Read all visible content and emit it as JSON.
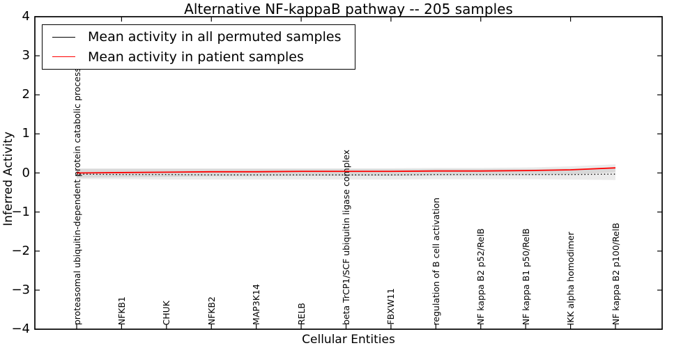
{
  "legend": {
    "entries": [
      {
        "label": "Mean activity in all permuted samples",
        "color": "#000000"
      },
      {
        "label": "Mean activity in patient samples",
        "color": "#ff0000"
      }
    ]
  },
  "chart_data": {
    "type": "line",
    "title": "Alternative NF-kappaB pathway -- 205 samples",
    "xlabel": "Cellular Entities",
    "ylabel": "Inferred Activity",
    "ylim": [
      -4,
      4
    ],
    "yticks": [
      4,
      3,
      2,
      1,
      0,
      -1,
      -2,
      -3,
      -4
    ],
    "ytick_labels": [
      "4",
      "3",
      "2",
      "1",
      "0",
      "−1",
      "−2",
      "−3",
      "−4"
    ],
    "grid": false,
    "legend_position": "upper left",
    "band_color": "rgba(0,0,0,0.08)",
    "frame_color": "#000000",
    "categories": [
      "proteasomal ubiquitin-dependent protein catabolic process",
      "NFKB1",
      "CHUK",
      "NFKB2",
      "MAP3K14",
      "RELB",
      "beta TrCP1/SCF ubiquitin ligase complex",
      "FBXW11",
      "regulation of B cell activation",
      "NF kappa B2 p52/RelB",
      "NF kappa B1 p50/RelB",
      "IKK alpha homodimer",
      "NF kappa B2 p100/RelB"
    ],
    "series": [
      {
        "name": "Mean activity in all permuted samples",
        "color": "#000000",
        "line_style": "dotted",
        "values": [
          -0.03,
          -0.04,
          -0.04,
          -0.05,
          -0.05,
          -0.05,
          -0.05,
          -0.05,
          -0.04,
          -0.04,
          -0.04,
          -0.04,
          -0.03
        ]
      },
      {
        "name": "Mean activity in patient samples",
        "color": "#ff0000",
        "line_style": "solid",
        "values": [
          0.0,
          0.01,
          0.02,
          0.03,
          0.03,
          0.04,
          0.04,
          0.04,
          0.05,
          0.05,
          0.06,
          0.08,
          0.13
        ]
      }
    ],
    "bands": [
      {
        "name": "permuted-samples-std-band",
        "upper": [
          0.1,
          0.1,
          0.1,
          0.1,
          0.1,
          0.1,
          0.1,
          0.1,
          0.1,
          0.1,
          0.1,
          0.11,
          0.12
        ],
        "lower": [
          -0.16,
          -0.16,
          -0.17,
          -0.17,
          -0.17,
          -0.17,
          -0.17,
          -0.17,
          -0.16,
          -0.16,
          -0.16,
          -0.17,
          -0.18
        ]
      },
      {
        "name": "patient-samples-std-band",
        "upper": [
          0.12,
          0.12,
          0.12,
          0.12,
          0.12,
          0.12,
          0.12,
          0.12,
          0.13,
          0.13,
          0.14,
          0.17,
          0.22
        ],
        "lower": [
          -0.12,
          -0.11,
          -0.1,
          -0.09,
          -0.09,
          -0.08,
          -0.08,
          -0.08,
          -0.07,
          -0.07,
          -0.06,
          -0.04,
          0.02
        ]
      }
    ]
  }
}
